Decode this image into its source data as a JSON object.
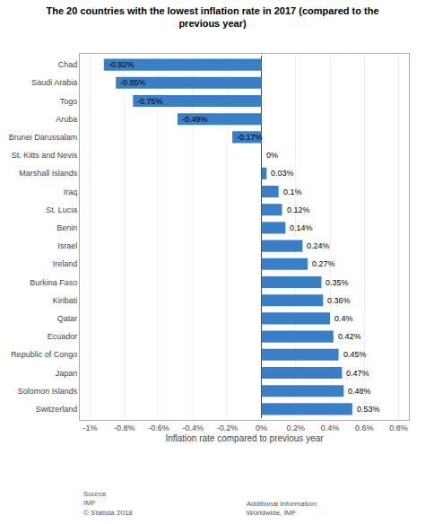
{
  "chart_data": {
    "type": "bar",
    "orientation": "horizontal",
    "title": "The 20 countries with the lowest inflation rate in 2017 (compared to the\nprevious year)",
    "categories": [
      "Chad",
      "Saudi Arabia",
      "Togo",
      "Aruba",
      "Brunei Darussalam",
      "St. Kitts and Nevis",
      "Marshall Islands",
      "Iraq",
      "St. Lucia",
      "Benin",
      "Israel",
      "Ireland",
      "Burkina Faso",
      "Kiribati",
      "Qatar",
      "Ecuador",
      "Republic of Congo",
      "Japan",
      "Solomon Islands",
      "Switzerland"
    ],
    "values": [
      -0.92,
      -0.85,
      -0.75,
      -0.49,
      -0.17,
      0.0,
      0.03,
      0.1,
      0.12,
      0.14,
      0.24,
      0.27,
      0.35,
      0.36,
      0.4,
      0.42,
      0.45,
      0.47,
      0.48,
      0.53
    ],
    "value_labels": [
      "-0.92%",
      "-0.85%",
      "-0.75%",
      "-0.49%",
      "-0.17%",
      "0%",
      "0.03%",
      "0.1%",
      "0.12%",
      "0.14%",
      "0.24%",
      "0.27%",
      "0.35%",
      "0.36%",
      "0.4%",
      "0.42%",
      "0.45%",
      "0.47%",
      "0.48%",
      "0.53%"
    ],
    "data_labels": true,
    "color": "#3a7ec6",
    "xlabel": "Inflation rate compared to previous year",
    "xlim": [
      -1.05,
      0.85
    ],
    "xticks": [
      {
        "value": -1.0,
        "label": "-1%"
      },
      {
        "value": -0.8,
        "label": "-0.8%"
      },
      {
        "value": -0.6,
        "label": "-0.6%"
      },
      {
        "value": -0.4,
        "label": "-0.4%"
      },
      {
        "value": -0.2,
        "label": "-0.2%"
      },
      {
        "value": 0.0,
        "label": "0%"
      },
      {
        "value": 0.2,
        "label": "0.2%"
      },
      {
        "value": 0.4,
        "label": "0.4%"
      },
      {
        "value": 0.6,
        "label": "0.6%"
      },
      {
        "value": 0.8,
        "label": "0.8%"
      }
    ],
    "grid": true,
    "annotations": [
      "Source\nIMF\n© Statista 2018",
      "Additional Information:\nWorldwide, IMF"
    ]
  }
}
